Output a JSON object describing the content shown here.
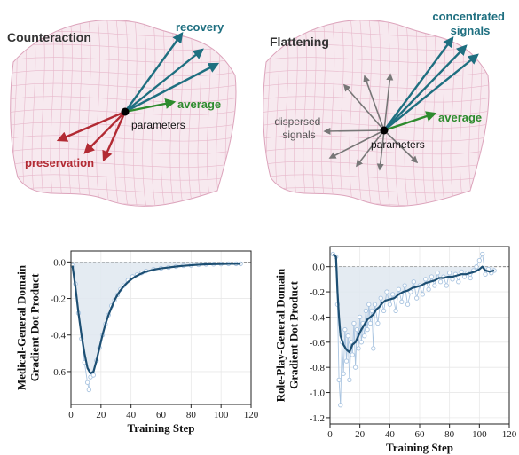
{
  "diagrams": {
    "left": {
      "title": "Counteraction",
      "parameters_label": "parameters",
      "recovery_label": "recovery",
      "average_label": "average",
      "preservation_label": "preservation"
    },
    "right": {
      "title": "Flattening",
      "parameters_label": "parameters",
      "concentrated_label_1": "concentrated",
      "concentrated_label_2": "signals",
      "average_label": "average",
      "dispersed_label_1": "dispersed",
      "dispersed_label_2": "signals"
    }
  },
  "colors": {
    "recovery": "#1e6f80",
    "average": "#2e8b2e",
    "preservation": "#b22a33",
    "dispersed": "#777777",
    "surface": "#f7e9ef",
    "mesh": "#e7b8cb",
    "line": "#1d4f73",
    "marker": "#a9c4e0",
    "fill": "#dfe8f0"
  },
  "chart_data": [
    {
      "type": "line",
      "xlabel": "Training Step",
      "ylabel": "Medical-General Domain\nGradient Dot Product",
      "xlim": [
        0,
        120
      ],
      "ylim": [
        -0.78,
        0.06
      ],
      "xticks": [
        "0",
        "20",
        "40",
        "60",
        "80",
        "100",
        "120"
      ],
      "yticks": [
        "0.0",
        "-0.2",
        "-0.4",
        "-0.6"
      ],
      "grid": true,
      "raw": [
        [
          1,
          -0.02
        ],
        [
          3,
          -0.12
        ],
        [
          5,
          -0.28
        ],
        [
          7,
          -0.42
        ],
        [
          9,
          -0.55
        ],
        [
          11,
          -0.66
        ],
        [
          12,
          -0.7
        ],
        [
          13,
          -0.63
        ],
        [
          15,
          -0.62
        ],
        [
          17,
          -0.54
        ],
        [
          19,
          -0.47
        ],
        [
          21,
          -0.4
        ],
        [
          23,
          -0.34
        ],
        [
          25,
          -0.29
        ],
        [
          27,
          -0.24
        ],
        [
          29,
          -0.21
        ],
        [
          31,
          -0.18
        ],
        [
          33,
          -0.15
        ],
        [
          35,
          -0.13
        ],
        [
          38,
          -0.1
        ],
        [
          41,
          -0.08
        ],
        [
          44,
          -0.07
        ],
        [
          47,
          -0.06
        ],
        [
          50,
          -0.05
        ],
        [
          55,
          -0.04
        ],
        [
          60,
          -0.035
        ],
        [
          65,
          -0.03
        ],
        [
          70,
          -0.025
        ],
        [
          75,
          -0.02
        ],
        [
          80,
          -0.018
        ],
        [
          85,
          -0.015
        ],
        [
          90,
          -0.013
        ],
        [
          95,
          -0.012
        ],
        [
          100,
          -0.011
        ],
        [
          105,
          -0.01
        ],
        [
          110,
          -0.01
        ],
        [
          113,
          -0.01
        ]
      ],
      "smoothed": [
        [
          1,
          -0.02
        ],
        [
          3,
          -0.14
        ],
        [
          5,
          -0.28
        ],
        [
          7,
          -0.4
        ],
        [
          9,
          -0.5
        ],
        [
          11,
          -0.58
        ],
        [
          13,
          -0.61
        ],
        [
          15,
          -0.6
        ],
        [
          17,
          -0.54
        ],
        [
          19,
          -0.47
        ],
        [
          21,
          -0.4
        ],
        [
          23,
          -0.34
        ],
        [
          25,
          -0.29
        ],
        [
          27,
          -0.25
        ],
        [
          29,
          -0.21
        ],
        [
          31,
          -0.18
        ],
        [
          33,
          -0.155
        ],
        [
          35,
          -0.135
        ],
        [
          38,
          -0.11
        ],
        [
          41,
          -0.09
        ],
        [
          44,
          -0.075
        ],
        [
          47,
          -0.063
        ],
        [
          50,
          -0.053
        ],
        [
          55,
          -0.042
        ],
        [
          60,
          -0.035
        ],
        [
          65,
          -0.03
        ],
        [
          70,
          -0.025
        ],
        [
          75,
          -0.021
        ],
        [
          80,
          -0.018
        ],
        [
          85,
          -0.015
        ],
        [
          90,
          -0.013
        ],
        [
          95,
          -0.012
        ],
        [
          100,
          -0.011
        ],
        [
          105,
          -0.01
        ],
        [
          110,
          -0.01
        ],
        [
          113,
          -0.01
        ]
      ]
    },
    {
      "type": "line",
      "xlabel": "Training Step",
      "ylabel": "Role-Play-General Domain\nGradient Dot Product",
      "xlim": [
        0,
        120
      ],
      "ylim": [
        -1.25,
        0.16
      ],
      "xticks": [
        "0",
        "20",
        "40",
        "60",
        "80",
        "100",
        "120"
      ],
      "yticks": [
        "0.0",
        "-0.2",
        "-0.4",
        "-0.6",
        "-0.8",
        "-1.0",
        "-1.2"
      ],
      "grid": true,
      "raw": [
        [
          2,
          0.1
        ],
        [
          4,
          0.08
        ],
        [
          5,
          -0.3
        ],
        [
          6,
          -0.9
        ],
        [
          7,
          -1.1
        ],
        [
          8,
          -0.6
        ],
        [
          9,
          -0.85
        ],
        [
          10,
          -0.5
        ],
        [
          11,
          -0.75
        ],
        [
          12,
          -0.55
        ],
        [
          13,
          -0.9
        ],
        [
          14,
          -0.6
        ],
        [
          15,
          -0.7
        ],
        [
          16,
          -0.45
        ],
        [
          17,
          -0.8
        ],
        [
          18,
          -0.5
        ],
        [
          19,
          -0.65
        ],
        [
          20,
          -0.4
        ],
        [
          21,
          -0.6
        ],
        [
          22,
          -0.45
        ],
        [
          23,
          -0.55
        ],
        [
          24,
          -0.35
        ],
        [
          25,
          -0.5
        ],
        [
          26,
          -0.3
        ],
        [
          27,
          -0.45
        ],
        [
          28,
          -0.35
        ],
        [
          29,
          -0.65
        ],
        [
          30,
          -0.3
        ],
        [
          32,
          -0.45
        ],
        [
          34,
          -0.25
        ],
        [
          36,
          -0.35
        ],
        [
          38,
          -0.2
        ],
        [
          40,
          -0.3
        ],
        [
          42,
          -0.22
        ],
        [
          44,
          -0.35
        ],
        [
          46,
          -0.18
        ],
        [
          48,
          -0.28
        ],
        [
          50,
          -0.15
        ],
        [
          52,
          -0.3
        ],
        [
          54,
          -0.2
        ],
        [
          56,
          -0.12
        ],
        [
          58,
          -0.25
        ],
        [
          60,
          -0.15
        ],
        [
          62,
          -0.22
        ],
        [
          64,
          -0.1
        ],
        [
          66,
          -0.18
        ],
        [
          68,
          -0.08
        ],
        [
          70,
          -0.15
        ],
        [
          72,
          -0.05
        ],
        [
          74,
          -0.12
        ],
        [
          76,
          -0.08
        ],
        [
          78,
          -0.15
        ],
        [
          80,
          -0.05
        ],
        [
          82,
          -0.1
        ],
        [
          84,
          -0.06
        ],
        [
          86,
          -0.12
        ],
        [
          88,
          -0.04
        ],
        [
          90,
          -0.08
        ],
        [
          92,
          -0.05
        ],
        [
          94,
          -0.09
        ],
        [
          96,
          -0.03
        ],
        [
          98,
          0.0
        ],
        [
          100,
          0.05
        ],
        [
          102,
          0.1
        ],
        [
          104,
          -0.06
        ],
        [
          106,
          -0.02
        ],
        [
          108,
          -0.05
        ],
        [
          110,
          -0.03
        ]
      ],
      "smoothed": [
        [
          2,
          0.1
        ],
        [
          4,
          0.08
        ],
        [
          5,
          -0.2
        ],
        [
          6,
          -0.4
        ],
        [
          7,
          -0.55
        ],
        [
          9,
          -0.62
        ],
        [
          11,
          -0.66
        ],
        [
          13,
          -0.68
        ],
        [
          15,
          -0.62
        ],
        [
          17,
          -0.6
        ],
        [
          19,
          -0.55
        ],
        [
          21,
          -0.5
        ],
        [
          23,
          -0.46
        ],
        [
          25,
          -0.42
        ],
        [
          27,
          -0.4
        ],
        [
          29,
          -0.38
        ],
        [
          31,
          -0.34
        ],
        [
          33,
          -0.32
        ],
        [
          35,
          -0.29
        ],
        [
          37,
          -0.27
        ],
        [
          40,
          -0.26
        ],
        [
          43,
          -0.25
        ],
        [
          46,
          -0.22
        ],
        [
          49,
          -0.2
        ],
        [
          52,
          -0.19
        ],
        [
          55,
          -0.17
        ],
        [
          58,
          -0.16
        ],
        [
          61,
          -0.15
        ],
        [
          64,
          -0.13
        ],
        [
          67,
          -0.12
        ],
        [
          70,
          -0.11
        ],
        [
          73,
          -0.09
        ],
        [
          76,
          -0.09
        ],
        [
          79,
          -0.08
        ],
        [
          82,
          -0.08
        ],
        [
          85,
          -0.07
        ],
        [
          88,
          -0.06
        ],
        [
          91,
          -0.06
        ],
        [
          94,
          -0.05
        ],
        [
          97,
          -0.04
        ],
        [
          100,
          -0.02
        ],
        [
          102,
          0.0
        ],
        [
          104,
          -0.03
        ],
        [
          107,
          -0.04
        ],
        [
          110,
          -0.03
        ]
      ]
    }
  ]
}
